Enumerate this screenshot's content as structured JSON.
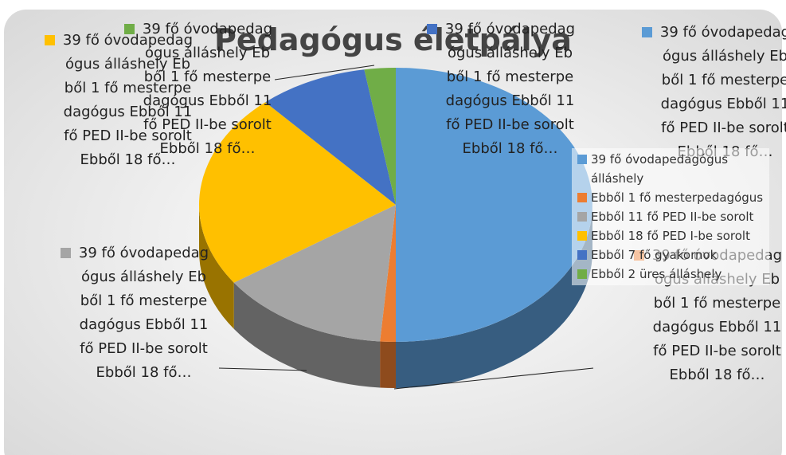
{
  "chart_data": {
    "type": "pie3d",
    "title": "Pedagógus életpálya",
    "categories": [
      "39 fő óvodapedagógus álláshely",
      "Ebből 1 fő mesterpedagógus",
      "Ebből 11 fő PED II-be sorolt",
      "Ebből 18 fő PED I-be sorolt",
      "Ebből 7 fő gyakornok",
      "Ebből 2 üres álláshely"
    ],
    "values": [
      39,
      1,
      11,
      18,
      7,
      2
    ],
    "colors": [
      "#5b9bd5",
      "#ed7d31",
      "#a5a5a5",
      "#ffc000",
      "#4472c4",
      "#70ad47"
    ],
    "data_label": "39 fő óvodapedagógus álláshely Ebből 1 fő mesterpedagógus Ebből 11 fő PED II-be sorolt Ebből 18 fő…",
    "legend": "right"
  }
}
